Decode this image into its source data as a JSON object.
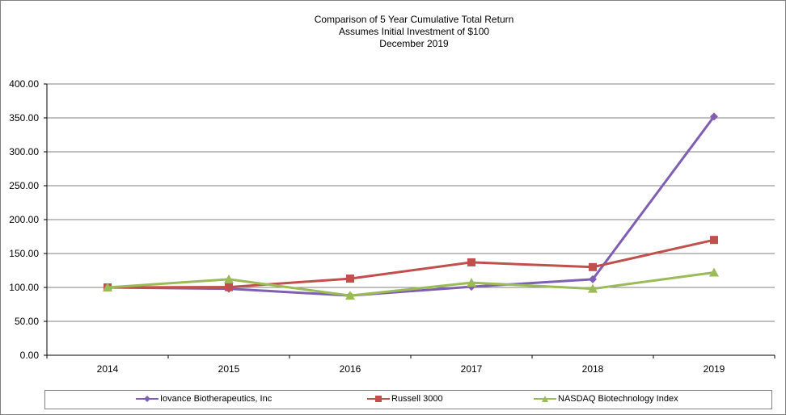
{
  "chart_data": {
    "type": "line",
    "title": "Comparison of 5 Year Cumulative Total Return",
    "subtitle_lines": [
      "Assumes Initial Investment of $100",
      "December 2019"
    ],
    "xlabel": "",
    "ylabel": "",
    "categories": [
      "2014",
      "2015",
      "2016",
      "2017",
      "2018",
      "2019"
    ],
    "ylim": [
      0,
      400
    ],
    "yticks": [
      "0.00",
      "50.00",
      "100.00",
      "150.00",
      "200.00",
      "250.00",
      "300.00",
      "350.00",
      "400.00"
    ],
    "grid": true,
    "legend_position": "bottom",
    "series": [
      {
        "name": "Iovance Biotherapeutics, Inc",
        "color": "#7f5fb3",
        "marker": "diamond",
        "values": [
          100.0,
          98.0,
          88.0,
          101.0,
          112.0,
          352.0
        ]
      },
      {
        "name": "Russell 3000",
        "color": "#c0504d",
        "marker": "square",
        "values": [
          100.0,
          100.5,
          113.0,
          137.0,
          130.0,
          170.0
        ]
      },
      {
        "name": "NASDAQ Biotechnology Index",
        "color": "#9bbb59",
        "marker": "triangle",
        "values": [
          100.0,
          112.0,
          88.0,
          107.0,
          98.0,
          122.0
        ]
      }
    ]
  }
}
